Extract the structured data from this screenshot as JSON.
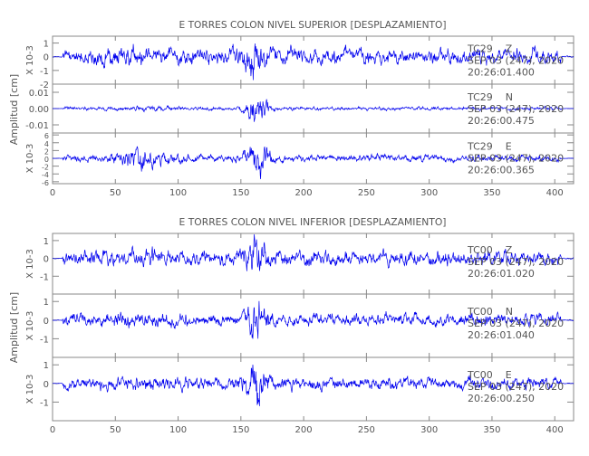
{
  "chart_data": [
    {
      "type": "line",
      "title": "E TORRES COLON NIVEL SUPERIOR [DESPLAZAMIENTO]",
      "ylabel": "Amplitud [cm]",
      "xlim": [
        0,
        415
      ],
      "xticks": [
        "0",
        "50",
        "100",
        "150",
        "200",
        "250",
        "300",
        "350",
        "400"
      ],
      "panels": [
        {
          "station": "TC29",
          "channel": "Z",
          "date": "SEP 03 (247), 2020",
          "time": "20:26:01.400",
          "scale": "X 10-3",
          "ylim": [
            -2,
            1.5
          ],
          "yticks": [
            "1",
            "0",
            "-1",
            "-2"
          ],
          "ytick_values": [
            1,
            0,
            -1,
            -2
          ],
          "amp": 0.8,
          "burst": 1.4,
          "early": 0.3,
          "seed": 3
        },
        {
          "station": "TC29",
          "channel": "N",
          "date": "SEP 03 (247), 2020",
          "time": "20:26:00.475",
          "scale": "",
          "ylim": [
            -0.015,
            0.015
          ],
          "yticks": [
            "0.01",
            "0.00",
            "-0.01"
          ],
          "ytick_values": [
            0.01,
            0,
            -0.01
          ],
          "amp": 0.0015,
          "burst": 0.012,
          "early": 0.001,
          "seed": 7
        },
        {
          "station": "TC29",
          "channel": "E",
          "date": "SEP 03 (247), 2020",
          "time": "20:26:00.365",
          "scale": "X 10-3",
          "ylim": [
            -6.5,
            6.5
          ],
          "yticks": [
            "6",
            "4",
            "2",
            "0",
            "-2",
            "-4",
            "-6"
          ],
          "ytick_values": [
            6,
            4,
            2,
            0,
            -2,
            -4,
            -6
          ],
          "amp": 1.2,
          "burst": 5,
          "early": 2.5,
          "seed": 11
        }
      ]
    },
    {
      "type": "line",
      "title": "E TORRES COLON NIVEL INFERIOR [DESPLAZAMIENTO]",
      "ylabel": "Amplitud [cm]",
      "xlim": [
        0,
        415
      ],
      "xticks": [
        "0",
        "50",
        "100",
        "150",
        "200",
        "250",
        "300",
        "350",
        "400"
      ],
      "panels": [
        {
          "station": "TC00",
          "channel": "Z",
          "date": "SEP 03 (247), 2020",
          "time": "20:26:01.020",
          "scale": "X 10-3",
          "ylim": [
            -2,
            1.4
          ],
          "yticks": [
            "1",
            "0",
            "-1"
          ],
          "ytick_values": [
            1,
            0,
            -1
          ],
          "amp": 0.55,
          "burst": 1.0,
          "early": 0.2,
          "seed": 19
        },
        {
          "station": "TC00",
          "channel": "N",
          "date": "SEP 03 (247), 2020",
          "time": "20:26:01.040",
          "scale": "X 10-3",
          "ylim": [
            -2,
            1.4
          ],
          "yticks": [
            "1",
            "0",
            "-1"
          ],
          "ytick_values": [
            1,
            0,
            -1
          ],
          "amp": 0.45,
          "burst": 1.1,
          "early": 0.1,
          "seed": 23
        },
        {
          "station": "TC00",
          "channel": "E",
          "date": "SEP 03 (247), 2020",
          "time": "20:26:00.250",
          "scale": "X 10-3",
          "ylim": [
            -2,
            1.4
          ],
          "yticks": [
            "1",
            "0",
            "-1"
          ],
          "ytick_values": [
            1,
            0,
            -1
          ],
          "amp": 0.45,
          "burst": 1.0,
          "early": 0.1,
          "seed": 29
        }
      ]
    }
  ]
}
